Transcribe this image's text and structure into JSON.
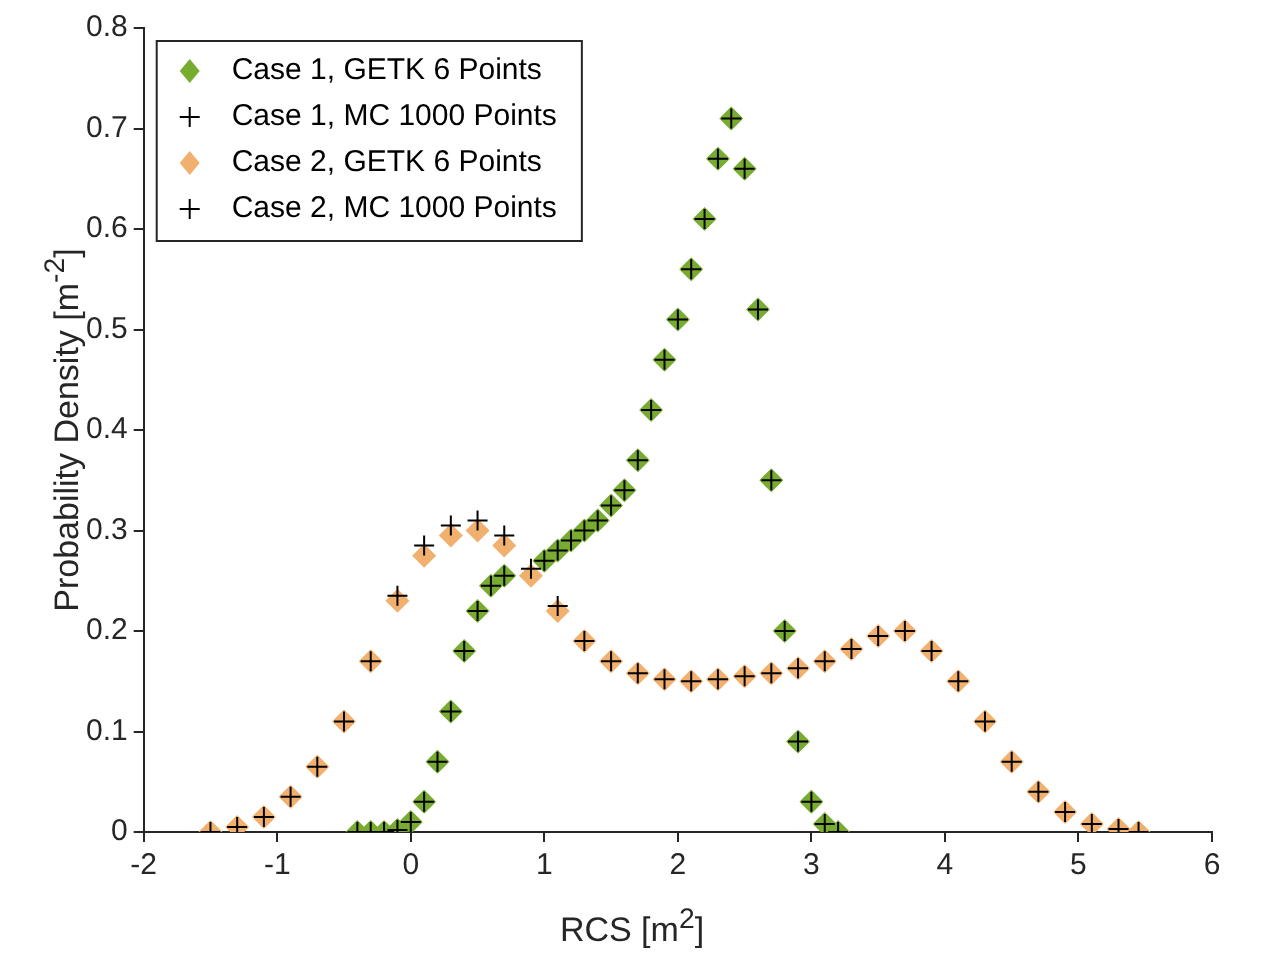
{
  "chart_data": {
    "type": "scatter",
    "xlabel": "RCS [m$^{2}$]",
    "ylabel": "Probability Density [m$^{-2}$]",
    "xlim": [
      -2,
      6
    ],
    "xticks": [
      -2,
      -1,
      0,
      1,
      2,
      3,
      4,
      5,
      6
    ],
    "ylim": [
      0,
      0.8
    ],
    "yticks": [
      0,
      0.1,
      0.2,
      0.3,
      0.4,
      0.5,
      0.6,
      0.7,
      0.8
    ],
    "grid": false,
    "legend": "top left",
    "series": [
      {
        "name": "Case 1, GETK 6 Points",
        "color": "#77ac30",
        "marker": "diamond",
        "x": [
          -0.4,
          -0.3,
          -0.2,
          -0.1,
          0,
          0.1,
          0.2,
          0.3,
          0.4,
          0.5,
          0.6,
          0.7,
          1.0,
          1.1,
          1.2,
          1.3,
          1.4,
          1.5,
          1.6,
          1.7,
          1.8,
          1.9,
          2.0,
          2.1,
          2.2,
          2.3,
          2.4,
          2.5,
          2.6,
          2.7,
          2.8,
          2.9,
          3.0,
          3.1,
          3.2
        ],
        "values": [
          0,
          0,
          0,
          0.002,
          0.01,
          0.03,
          0.07,
          0.12,
          0.18,
          0.22,
          0.245,
          0.255,
          0.27,
          0.28,
          0.29,
          0.3,
          0.31,
          0.325,
          0.34,
          0.37,
          0.42,
          0.47,
          0.51,
          0.56,
          0.61,
          0.67,
          0.71,
          0.66,
          0.52,
          0.35,
          0.2,
          0.09,
          0.03,
          0.008,
          0
        ]
      },
      {
        "name": "Case 1, MC 1000 Points",
        "color": "#000000",
        "marker": "cross",
        "x": [
          -0.4,
          -0.3,
          -0.2,
          -0.1,
          0,
          0.1,
          0.2,
          0.3,
          0.4,
          0.5,
          0.6,
          0.7,
          1.0,
          1.1,
          1.2,
          1.3,
          1.4,
          1.5,
          1.6,
          1.7,
          1.8,
          1.9,
          2.0,
          2.1,
          2.2,
          2.3,
          2.4,
          2.5,
          2.6,
          2.7,
          2.8,
          2.9,
          3.0,
          3.1,
          3.2
        ],
        "values": [
          0,
          0,
          0,
          0.002,
          0.01,
          0.03,
          0.07,
          0.12,
          0.18,
          0.22,
          0.245,
          0.255,
          0.27,
          0.28,
          0.29,
          0.3,
          0.31,
          0.325,
          0.34,
          0.37,
          0.42,
          0.47,
          0.51,
          0.56,
          0.61,
          0.67,
          0.71,
          0.66,
          0.52,
          0.35,
          0.2,
          0.09,
          0.03,
          0.008,
          0
        ]
      },
      {
        "name": "Case 2, GETK 6 Points",
        "color": "#f2b06e",
        "marker": "diamond",
        "x": [
          -1.5,
          -1.3,
          -1.1,
          -0.9,
          -0.7,
          -0.5,
          -0.3,
          -0.1,
          0.1,
          0.3,
          0.5,
          0.7,
          0.9,
          1.1,
          1.3,
          1.5,
          1.7,
          1.9,
          2.1,
          2.3,
          2.5,
          2.7,
          2.9,
          3.1,
          3.3,
          3.5,
          3.7,
          3.9,
          4.1,
          4.3,
          4.5,
          4.7,
          4.9,
          5.1,
          5.3,
          5.45
        ],
        "values": [
          0,
          0.005,
          0.015,
          0.035,
          0.065,
          0.11,
          0.17,
          0.23,
          0.275,
          0.295,
          0.3,
          0.285,
          0.255,
          0.22,
          0.19,
          0.17,
          0.158,
          0.152,
          0.15,
          0.152,
          0.155,
          0.158,
          0.163,
          0.17,
          0.182,
          0.195,
          0.2,
          0.18,
          0.15,
          0.11,
          0.07,
          0.04,
          0.02,
          0.008,
          0.003,
          0
        ]
      },
      {
        "name": "Case 2, MC 1000 Points",
        "color": "#000000",
        "marker": "cross",
        "x": [
          -1.5,
          -1.3,
          -1.1,
          -0.9,
          -0.7,
          -0.5,
          -0.3,
          -0.1,
          0.1,
          0.3,
          0.5,
          0.7,
          0.9,
          1.1,
          1.3,
          1.5,
          1.7,
          1.9,
          2.1,
          2.3,
          2.5,
          2.7,
          2.9,
          3.1,
          3.3,
          3.5,
          3.7,
          3.9,
          4.1,
          4.3,
          4.5,
          4.7,
          4.9,
          5.1,
          5.3,
          5.45
        ],
        "values": [
          0,
          0.005,
          0.015,
          0.035,
          0.065,
          0.11,
          0.17,
          0.235,
          0.285,
          0.305,
          0.31,
          0.295,
          0.262,
          0.225,
          0.19,
          0.17,
          0.158,
          0.152,
          0.15,
          0.152,
          0.155,
          0.158,
          0.163,
          0.17,
          0.182,
          0.195,
          0.2,
          0.18,
          0.15,
          0.11,
          0.07,
          0.04,
          0.02,
          0.008,
          0.003,
          0
        ]
      }
    ]
  }
}
